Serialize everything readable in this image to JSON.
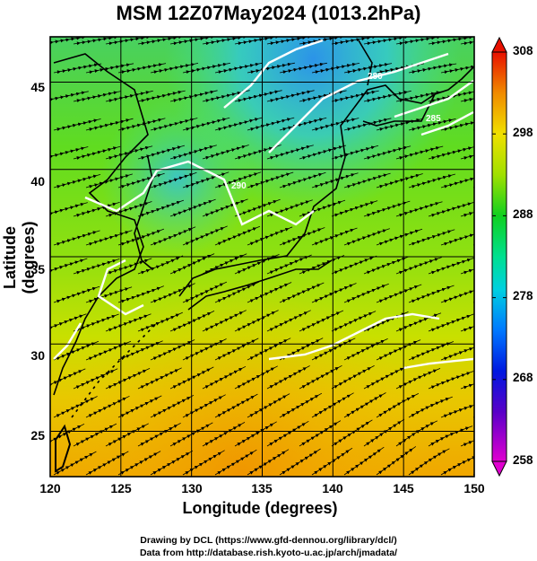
{
  "title": "MSM 12Z07May2024 (1013.2hPa)",
  "axes": {
    "xlabel": "Longitude (degrees)",
    "ylabel": "Latitude  (degrees)",
    "xticks": [
      "120",
      "125",
      "130",
      "135",
      "140",
      "145",
      "150"
    ],
    "yticks": [
      "45",
      "40",
      "35",
      "30",
      "25"
    ],
    "xlim": [
      120,
      150
    ],
    "ylim": [
      22.4,
      47.6
    ]
  },
  "colorbar": {
    "ticks": [
      "308",
      "298",
      "288",
      "278",
      "268",
      "258"
    ],
    "range": [
      258,
      308
    ]
  },
  "contour_labels": [
    "290",
    "285",
    "280"
  ],
  "credits": {
    "line1": "Drawing by DCL (https://www.gfd-dennou.org/library/dcl/)",
    "line2": "Data from http://database.rish.kyoto-u.ac.jp/arch/jmadata/"
  }
}
